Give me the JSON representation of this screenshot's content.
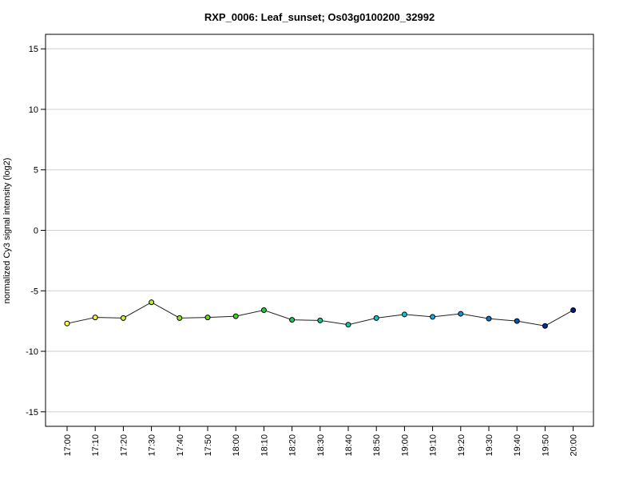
{
  "chart_data": {
    "type": "line",
    "title": "RXP_0006: Leaf_sunset; Os03g0100200_32992",
    "xlabel": "",
    "ylabel": "normalized Cy3 signal intensity (log2)",
    "ylim": [
      -16.2,
      16.2
    ],
    "yticks": [
      -15,
      -10,
      -5,
      0,
      5,
      10,
      15
    ],
    "grid": true,
    "categories": [
      "17:00",
      "17:10",
      "17:20",
      "17:30",
      "17:40",
      "17:50",
      "18:00",
      "18:10",
      "18:20",
      "18:30",
      "18:40",
      "18:50",
      "19:00",
      "19:10",
      "19:20",
      "19:30",
      "19:40",
      "19:50",
      "20:00"
    ],
    "values": [
      -7.7,
      -7.2,
      -7.25,
      -5.95,
      -7.25,
      -7.2,
      -7.1,
      -6.6,
      -7.4,
      -7.45,
      -7.8,
      -7.25,
      -6.95,
      -7.15,
      -6.9,
      -7.3,
      -7.5,
      -7.9,
      -6.6
    ],
    "colors": [
      "#ffff33",
      "#eef532",
      "#d6ef2f",
      "#b9ea2a",
      "#8fe324",
      "#66dd1e",
      "#3fd71e",
      "#22d230",
      "#19cc5a",
      "#15c882",
      "#13c7a8",
      "#12c6c8",
      "#12c2dd",
      "#10aee0",
      "#0e93d8",
      "#0b73c9",
      "#0850b3",
      "#052f99",
      "#031a88"
    ]
  }
}
